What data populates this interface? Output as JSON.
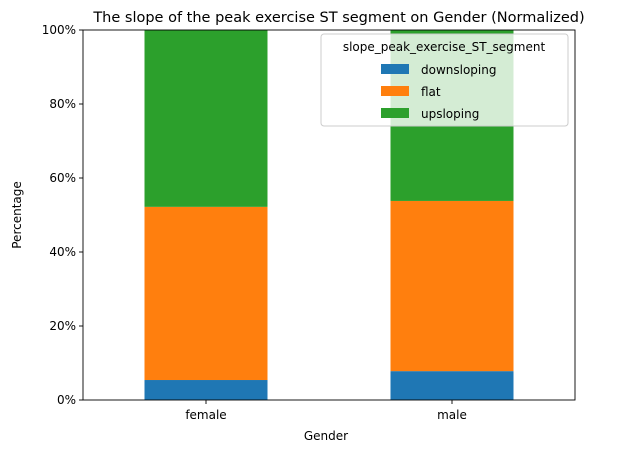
{
  "chart_data": {
    "type": "bar",
    "stacked": true,
    "title": "The slope of the peak exercise ST segment on Gender (Normalized)",
    "xlabel": "Gender",
    "ylabel": "Percentage",
    "categories": [
      "female",
      "male"
    ],
    "ylim": [
      0,
      100
    ],
    "yticks": [
      0,
      20,
      40,
      60,
      80,
      100
    ],
    "ytick_labels": [
      "0%",
      "20%",
      "40%",
      "60%",
      "80%",
      "100%"
    ],
    "series": [
      {
        "name": "downsloping",
        "color": "#1f77b4",
        "values": [
          5.4,
          7.8
        ]
      },
      {
        "name": "flat",
        "color": "#ff7f0e",
        "values": [
          46.8,
          46.0
        ]
      },
      {
        "name": "upsloping",
        "color": "#2ca02c",
        "values": [
          47.8,
          46.2
        ]
      }
    ],
    "legend": {
      "title": "slope_peak_exercise_ST_segment",
      "placement": "top-right"
    },
    "grid": false
  }
}
